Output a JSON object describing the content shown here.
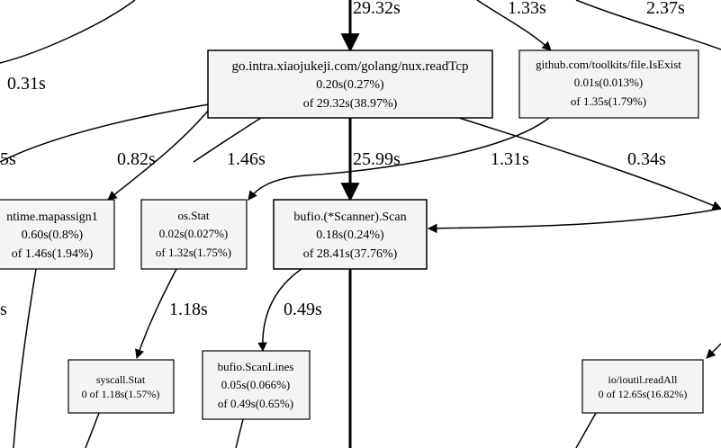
{
  "graph": {
    "nodes": [
      {
        "id": "readTcp",
        "lines": [
          "go.intra.xiaojukeji.com/golang/nux.readTcp",
          "0.20s(0.27%)",
          "of 29.32s(38.97%)"
        ]
      },
      {
        "id": "isExist",
        "lines": [
          "github.com/toolkits/file.IsExist",
          "0.01s(0.013%)",
          "of 1.35s(1.79%)"
        ]
      },
      {
        "id": "mapassign",
        "lines": [
          "ntime.mapassign1",
          "0.60s(0.8%)",
          "of 1.46s(1.94%)"
        ]
      },
      {
        "id": "osStat",
        "lines": [
          "os.Stat",
          "0.02s(0.027%)",
          "of 1.32s(1.75%)"
        ]
      },
      {
        "id": "scan",
        "lines": [
          "bufio.(*Scanner).Scan",
          "0.18s(0.24%)",
          "of 28.41s(37.76%)"
        ]
      },
      {
        "id": "syscallStat",
        "lines": [
          "syscall.Stat",
          "0 of 1.18s(1.57%)"
        ]
      },
      {
        "id": "scanLines",
        "lines": [
          "bufio.ScanLines",
          "0.05s(0.066%)",
          "of 0.49s(0.65%)"
        ]
      },
      {
        "id": "readAll",
        "lines": [
          "io/ioutil.readAll",
          "0 of 12.65s(16.82%)"
        ]
      }
    ],
    "edge_labels": {
      "to_readTcp": "29.32s",
      "to_isExist": "1.33s",
      "top_right": "2.37s",
      "left_top": "0.31s",
      "left_mid": "5s",
      "to_mapassign": "0.82s",
      "to_osStat_from_readTcp": "1.46s",
      "readTcp_to_scan": "25.99s",
      "isExist_to_osStat": "1.31s",
      "readTcp_to_right": "0.34s",
      "osStat_to_syscall": "1.18s",
      "scan_to_scanLines": "0.49s",
      "left_bottom": "s"
    }
  }
}
